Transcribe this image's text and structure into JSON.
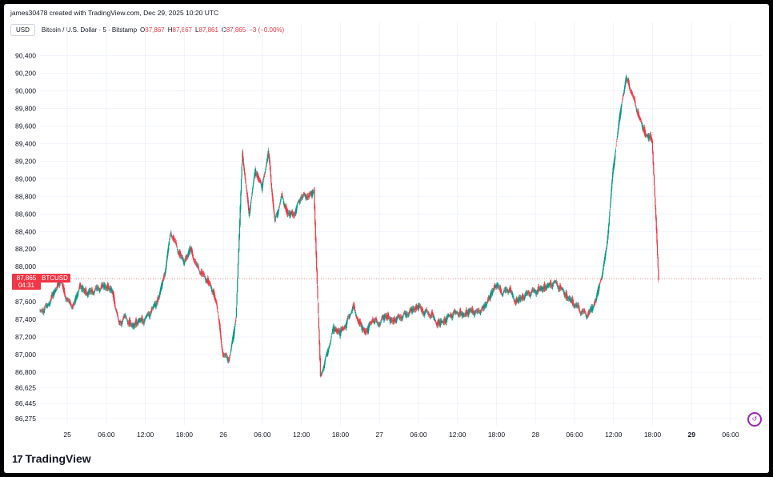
{
  "header": {
    "attribution": "james30478 created with TradingView.com, Dec 29, 2025 10:20 UTC"
  },
  "legend": {
    "currency": "USD",
    "symbol": "Bitcoin / U.S. Dollar · 5 · Bitstamp",
    "o_label": "O",
    "o_value": "87,867",
    "h_label": "H",
    "h_value": "87,867",
    "l_label": "L",
    "l_value": "87,861",
    "c_label": "C",
    "c_value": "87,865",
    "change": "−3 (−0.00%)"
  },
  "price_tag": {
    "price": "87,865",
    "countdown": "04:31",
    "ticker": "BTCUSD"
  },
  "logo": {
    "icon": "17",
    "text": "TradingView"
  },
  "colors": {
    "up": "#089981",
    "down": "#f23645",
    "grid": "#f0f3fa",
    "axis_text": "#131722"
  },
  "chart_data": {
    "type": "line",
    "title": "Bitcoin / U.S. Dollar · 5 · Bitstamp",
    "xlabel": "",
    "ylabel": "",
    "ylim": [
      86200,
      90550
    ],
    "y_ticks": [
      90400,
      90200,
      90000,
      89800,
      89600,
      89400,
      89200,
      89000,
      88800,
      88600,
      88400,
      88200,
      88000,
      87600,
      87400,
      87200,
      87000,
      86800,
      86625,
      86445,
      86275
    ],
    "y_tick_labels": [
      "90,400",
      "90,200",
      "90,000",
      "89,800",
      "89,600",
      "89,400",
      "89,200",
      "89,000",
      "88,800",
      "88,600",
      "88,400",
      "88,200",
      "88,000",
      "87,600",
      "87,400",
      "87,200",
      "87,000",
      "86,800",
      "86,625",
      "86,445",
      "86,275"
    ],
    "x_ticks": [
      {
        "hour": 0,
        "label": "25",
        "bold": false
      },
      {
        "hour": 6,
        "label": "06:00",
        "bold": false
      },
      {
        "hour": 12,
        "label": "12:00",
        "bold": false
      },
      {
        "hour": 18,
        "label": "18:00",
        "bold": false
      },
      {
        "hour": 24,
        "label": "26",
        "bold": false
      },
      {
        "hour": 30,
        "label": "06:00",
        "bold": false
      },
      {
        "hour": 36,
        "label": "12:00",
        "bold": false
      },
      {
        "hour": 42,
        "label": "18:00",
        "bold": false
      },
      {
        "hour": 48,
        "label": "27",
        "bold": false
      },
      {
        "hour": 54,
        "label": "06:00",
        "bold": false
      },
      {
        "hour": 60,
        "label": "12:00",
        "bold": false
      },
      {
        "hour": 66,
        "label": "18:00",
        "bold": false
      },
      {
        "hour": 72,
        "label": "28",
        "bold": false
      },
      {
        "hour": 78,
        "label": "06:00",
        "bold": false
      },
      {
        "hour": 84,
        "label": "12:00",
        "bold": false
      },
      {
        "hour": 90,
        "label": "18:00",
        "bold": false
      },
      {
        "hour": 96,
        "label": "29",
        "bold": true
      },
      {
        "hour": 102,
        "label": "06:00",
        "bold": false
      }
    ],
    "x_range": [
      -4.2,
      106.8
    ],
    "last_price": 87865,
    "series": [
      {
        "points": [
          [
            -4.2,
            87480
          ],
          [
            -3,
            87550
          ],
          [
            -2,
            87700
          ],
          [
            -1,
            87850
          ],
          [
            0,
            87620
          ],
          [
            1,
            87550
          ],
          [
            2,
            87780
          ],
          [
            3,
            87700
          ],
          [
            4,
            87720
          ],
          [
            5,
            87760
          ],
          [
            6,
            87780
          ],
          [
            7,
            87720
          ],
          [
            8,
            87350
          ],
          [
            9,
            87430
          ],
          [
            10,
            87320
          ],
          [
            11,
            87380
          ],
          [
            12,
            87400
          ],
          [
            13,
            87500
          ],
          [
            14,
            87620
          ],
          [
            15,
            87900
          ],
          [
            16,
            88400
          ],
          [
            17,
            88200
          ],
          [
            18,
            88050
          ],
          [
            19,
            88200
          ],
          [
            20,
            88000
          ],
          [
            21,
            87900
          ],
          [
            22,
            87800
          ],
          [
            23,
            87600
          ],
          [
            24,
            87000
          ],
          [
            25,
            86950
          ],
          [
            26,
            87400
          ],
          [
            27,
            89300
          ],
          [
            28,
            88600
          ],
          [
            29,
            89100
          ],
          [
            30,
            88900
          ],
          [
            31,
            89300
          ],
          [
            32,
            88500
          ],
          [
            33,
            88800
          ],
          [
            34,
            88600
          ],
          [
            35,
            88600
          ],
          [
            36,
            88800
          ],
          [
            37,
            88800
          ],
          [
            38,
            88850
          ],
          [
            39,
            86750
          ],
          [
            40,
            87000
          ],
          [
            41,
            87300
          ],
          [
            42,
            87250
          ],
          [
            43,
            87350
          ],
          [
            44,
            87550
          ],
          [
            45,
            87350
          ],
          [
            46,
            87250
          ],
          [
            47,
            87400
          ],
          [
            48,
            87350
          ],
          [
            49,
            87450
          ],
          [
            50,
            87380
          ],
          [
            51,
            87420
          ],
          [
            52,
            87450
          ],
          [
            53,
            87500
          ],
          [
            54,
            87550
          ],
          [
            55,
            87480
          ],
          [
            56,
            87460
          ],
          [
            57,
            87350
          ],
          [
            58,
            87380
          ],
          [
            59,
            87450
          ],
          [
            60,
            87480
          ],
          [
            61,
            87450
          ],
          [
            62,
            87500
          ],
          [
            63,
            87480
          ],
          [
            64,
            87520
          ],
          [
            65,
            87650
          ],
          [
            66,
            87800
          ],
          [
            67,
            87700
          ],
          [
            68,
            87750
          ],
          [
            69,
            87600
          ],
          [
            70,
            87650
          ],
          [
            71,
            87700
          ],
          [
            72,
            87720
          ],
          [
            73,
            87750
          ],
          [
            74,
            87780
          ],
          [
            75,
            87820
          ],
          [
            76,
            87750
          ],
          [
            77,
            87650
          ],
          [
            78,
            87580
          ],
          [
            79,
            87500
          ],
          [
            80,
            87450
          ],
          [
            81,
            87550
          ],
          [
            82,
            87800
          ],
          [
            83,
            88200
          ],
          [
            84,
            89100
          ],
          [
            85,
            89700
          ],
          [
            86,
            90150
          ],
          [
            87,
            89950
          ],
          [
            88,
            89700
          ],
          [
            89,
            89500
          ],
          [
            90,
            89450
          ],
          [
            91,
            87865
          ]
        ]
      }
    ]
  }
}
